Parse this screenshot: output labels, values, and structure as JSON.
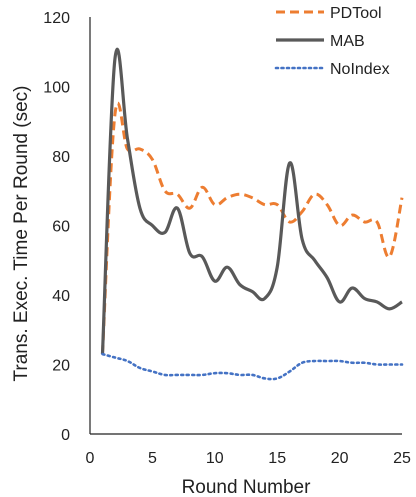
{
  "chart_data": {
    "type": "line",
    "title": "",
    "xlabel": "Round Number",
    "ylabel": "Trans. Exec. Time Per Round (sec)",
    "xlim": [
      0,
      25
    ],
    "ylim": [
      0,
      120
    ],
    "xticks": [
      "0",
      "5",
      "10",
      "15",
      "20",
      "25"
    ],
    "yticks": [
      "0",
      "20",
      "40",
      "60",
      "80",
      "100",
      "120"
    ],
    "grid": false,
    "legend_position": "top-right",
    "series": [
      {
        "name": "PDTool",
        "color": "#ED7D31",
        "style": "dashed",
        "x": [
          1,
          2,
          3,
          4,
          5,
          6,
          7,
          8,
          9,
          10,
          11,
          12,
          13,
          14,
          15,
          16,
          17,
          18,
          19,
          20,
          21,
          22,
          23,
          24,
          25
        ],
        "values": [
          23,
          92,
          82,
          82,
          79,
          70,
          69,
          65,
          71,
          66,
          68,
          69,
          68,
          66,
          66,
          61,
          64,
          69,
          66,
          60,
          63,
          61,
          61,
          51,
          68
        ]
      },
      {
        "name": "MAB",
        "color": "#595959",
        "style": "solid",
        "x": [
          1,
          2,
          3,
          4,
          5,
          6,
          7,
          8,
          9,
          10,
          11,
          12,
          13,
          14,
          15,
          16,
          17,
          18,
          19,
          20,
          21,
          22,
          23,
          24,
          25
        ],
        "values": [
          23,
          108,
          85,
          65,
          60,
          58,
          65,
          52,
          51,
          44,
          48,
          43,
          41,
          39,
          48,
          78,
          56,
          50,
          45,
          38,
          42,
          39,
          38,
          36,
          38
        ]
      },
      {
        "name": "NoIndex",
        "color": "#4472C4",
        "style": "dotted",
        "x": [
          1,
          2,
          3,
          4,
          5,
          6,
          7,
          8,
          9,
          10,
          11,
          12,
          13,
          14,
          15,
          16,
          17,
          18,
          19,
          20,
          21,
          22,
          23,
          24,
          25
        ],
        "values": [
          23,
          22,
          21,
          19,
          18,
          17,
          17,
          17,
          17,
          17.5,
          17.5,
          17,
          17,
          16,
          16,
          18,
          20.5,
          21,
          21,
          21,
          20.5,
          20.5,
          20,
          20,
          20
        ]
      }
    ]
  }
}
